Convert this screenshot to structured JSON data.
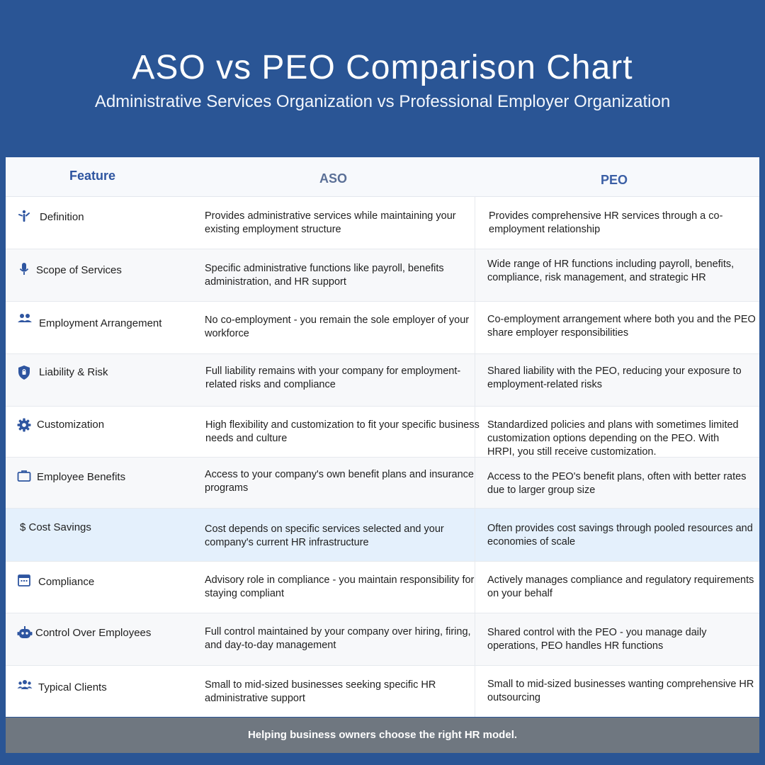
{
  "header": {
    "title": "ASO vs PEO Comparison Chart",
    "subtitle": "Administrative Services Organization vs Professional Employer Organization"
  },
  "columns": {
    "feature": "Feature",
    "aso": "ASO",
    "peo": "PEO"
  },
  "accent_color": "#2e55a0",
  "rows": [
    {
      "icon": "person-accessibility-icon",
      "feature": "Definition",
      "aso": "Provides administrative services while maintaining your existing employment structure",
      "peo": "Provides comprehensive HR services through a co-employment relationship"
    },
    {
      "icon": "microphone-icon",
      "feature": "Scope of Services",
      "aso": "Specific administrative functions like payroll, benefits administration, and HR support",
      "peo": "Wide range of HR functions including payroll, benefits, compliance, risk management, and strategic HR"
    },
    {
      "icon": "people-icon",
      "feature": "Employment Arrangement",
      "aso": "No co-employment - you remain the sole employer of your workforce",
      "peo": "Co-employment arrangement where both you and the PEO share employer responsibilities"
    },
    {
      "icon": "shield-lock-icon",
      "feature": "Liability & Risk",
      "aso": "Full liability remains with your company for employment-related risks and compliance",
      "peo": "Shared liability with the PEO, reducing your exposure to employment-related risks"
    },
    {
      "icon": "gear-icon",
      "feature": "Customization",
      "aso": "High flexibility and customization to fit your specific business needs and culture",
      "peo": " Standardized policies and plans with sometimes limited customization options depending on the PEO. With HRPI, you still receive customization."
    },
    {
      "icon": "briefcase-icon",
      "feature": "Employee Benefits",
      "aso": "Access to your company's own benefit plans and insurance programs",
      "peo": "Access to the PEO's benefit plans, often with better rates due to larger group size"
    },
    {
      "icon": "",
      "feature": "$ Cost Savings",
      "aso": "Cost depends on specific services selected and your company's current HR infrastructure",
      "peo": "Often provides cost savings through pooled resources and economies of scale"
    },
    {
      "icon": "calendar-icon",
      "feature": "Compliance",
      "aso": "Advisory role in compliance - you maintain responsibility for staying compliant",
      "peo": "Actively manages compliance and regulatory requirements on your behalf"
    },
    {
      "icon": "robot-icon",
      "feature": "Control Over Employees",
      "aso": "Full control maintained by your company over hiring, firing, and day-to-day management",
      "peo": "Shared control with the PEO - you manage daily operations, PEO handles HR functions"
    },
    {
      "icon": "group-icon",
      "feature": "Typical Clients",
      "aso": "Small to mid-sized businesses seeking specific HR administrative support",
      "peo": "Small to mid-sized businesses wanting comprehensive HR outsourcing"
    }
  ],
  "footer": {
    "text": "Helping business owners choose the right HR model."
  }
}
